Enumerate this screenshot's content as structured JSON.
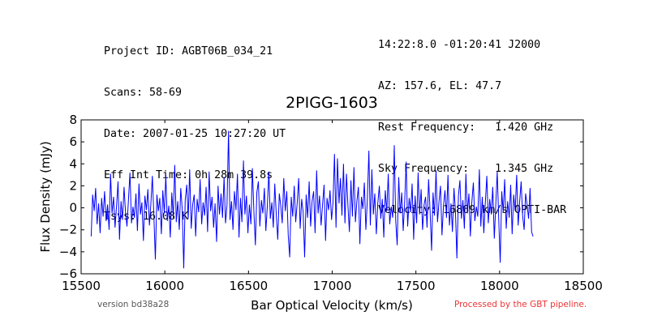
{
  "header_left": [
    "Project ID: AGBT06B_034_21",
    "Scans: 58-69",
    "Date: 2007-01-25 10:27:20 UT",
    "Eff Int Time: 0h 28m 39.8s",
    "Tsys: 16.08 K"
  ],
  "header_right": [
    "14:22:8.0 -01:20:41 J2000",
    "AZ: 157.6, EL: 47.7",
    "Rest Frequency:   1.420 GHz",
    "Sky Frequency:    1.345 GHz",
    "Velocity: 16869 km/s OPTI-BAR"
  ],
  "footer": {
    "version": "version bd38a28",
    "processed": "Processed by the GBT pipeline."
  },
  "colors": {
    "line": "#0000ff",
    "processed_text": "#ee3333"
  },
  "chart_data": {
    "type": "line",
    "title": "2PIGG-1603",
    "xlabel": "Bar Optical Velocity (km/s)",
    "ylabel": "Flux Density (mJy)",
    "xlim": [
      15500,
      18500
    ],
    "ylim": [
      -6,
      8
    ],
    "xticks": [
      "15500",
      "16000",
      "16500",
      "17000",
      "17500",
      "18000",
      "18500"
    ],
    "yticks": [
      "−6",
      "−4",
      "−2",
      "0",
      "2",
      "4",
      "6",
      "8"
    ],
    "grid": false,
    "series": [
      {
        "color": "#0000ff",
        "x_start": 15560,
        "x_end": 18200,
        "y": [
          -2.6,
          1.2,
          -0.3,
          1.8,
          -1.5,
          0.4,
          -2.3,
          0.9,
          -0.8,
          1.5,
          -1.2,
          0.3,
          -2.0,
          3.1,
          -0.5,
          1.0,
          -1.8,
          0.2,
          2.4,
          -2.9,
          0.6,
          -1.1,
          1.9,
          -0.4,
          -1.7,
          0.8,
          3.2,
          -1.4,
          0.1,
          -0.9,
          1.3,
          -2.1,
          2.2,
          -0.6,
          0.5,
          -3.0,
          1.1,
          -0.2,
          1.7,
          -1.6,
          0.4,
          2.9,
          -0.8,
          -4.7,
          1.2,
          -0.3,
          0.9,
          -2.4,
          1.6,
          -0.5,
          3.0,
          -1.2,
          0.2,
          -2.7,
          1.4,
          -0.9,
          3.9,
          -1.3,
          0.6,
          -2.0,
          1.8,
          -0.1,
          -5.5,
          0.7,
          2.1,
          -1.0,
          3.5,
          -1.9,
          0.3,
          1.2,
          -2.6,
          0.8,
          -0.4,
          2.6,
          -1.5,
          0.5,
          -0.7,
          1.9,
          -2.2,
          3.3,
          -0.3,
          1.0,
          -1.8,
          0.4,
          -3.1,
          2.0,
          -0.6,
          1.3,
          -0.9,
          2.8,
          -1.4,
          0.2,
          7.0,
          -1.1,
          0.6,
          -2.0,
          1.5,
          -0.2,
          3.1,
          -2.7,
          0.9,
          -1.3,
          4.3,
          -0.6,
          1.1,
          -2.3,
          0.3,
          -1.5,
          3.6,
          -0.4,
          -3.4,
          1.4,
          2.4,
          -1.7,
          0.7,
          -0.5,
          1.8,
          -2.1,
          0.1,
          3.3,
          -1.0,
          0.5,
          -1.8,
          2.2,
          -0.7,
          -2.9,
          1.3,
          0.2,
          -1.4,
          2.7,
          -0.3,
          1.5,
          -2.5,
          -4.5,
          1.0,
          -0.8,
          2.0,
          -1.3,
          0.4,
          2.7,
          -1.9,
          0.8,
          -0.4,
          -4.5,
          1.2,
          -0.9,
          2.4,
          -1.7,
          0.6,
          1.5,
          -2.3,
          3.4,
          -0.5,
          1.1,
          -1.6,
          0.3,
          2.1,
          -3.0,
          0.9,
          -0.2,
          1.6,
          -1.1,
          0.5,
          4.9,
          -1.8,
          4.5,
          0.4,
          2.7,
          -0.7,
          4.0,
          -1.4,
          3.1,
          0.2,
          -2.2,
          2.5,
          -0.8,
          3.7,
          -1.3,
          0.6,
          1.9,
          -3.3,
          1.0,
          -0.1,
          2.3,
          -2.0,
          0.7,
          5.2,
          -1.6,
          3.5,
          -0.6,
          1.3,
          -2.4,
          0.4,
          2.0,
          -1.0,
          0.8,
          -2.7,
          1.6,
          -0.3,
          3.1,
          -1.5,
          0.1,
          -0.9,
          5.7,
          -1.2,
          -3.4,
          2.8,
          -0.5,
          1.4,
          -2.1,
          0.5,
          4.2,
          -1.7,
          0.9,
          -0.4,
          2.2,
          -2.9,
          1.1,
          -1.4,
          3.2,
          -0.6,
          1.7,
          -2.0,
          0.3,
          1.0,
          -1.8,
          2.6,
          -0.2,
          -3.9,
          1.4,
          -0.7,
          3.4,
          -1.3,
          0.6,
          2.0,
          -2.5,
          0.2,
          1.6,
          -0.9,
          3.0,
          -1.6,
          0.4,
          -2.2,
          1.8,
          -0.3,
          -4.6,
          1.1,
          2.5,
          -1.0,
          0.7,
          -1.9,
          3.1,
          -0.5,
          1.3,
          -2.6,
          0.5,
          2.3,
          -1.2,
          0.1,
          -0.8,
          3.5,
          -1.7,
          1.0,
          -2.3,
          0.4,
          2.9,
          -1.4,
          0.8,
          -0.6,
          1.9,
          -2.8,
          0.2,
          3.3,
          -1.1,
          -5.0,
          1.5,
          -0.4,
          2.6,
          -1.9,
          0.6,
          -0.9,
          2.1,
          -2.4,
          1.2,
          -0.3,
          3.0,
          -1.6,
          0.5,
          2.4,
          -0.7,
          -2.0,
          1.3,
          0.3,
          -1.0,
          1.8,
          -2.2,
          -2.6
        ]
      }
    ]
  }
}
